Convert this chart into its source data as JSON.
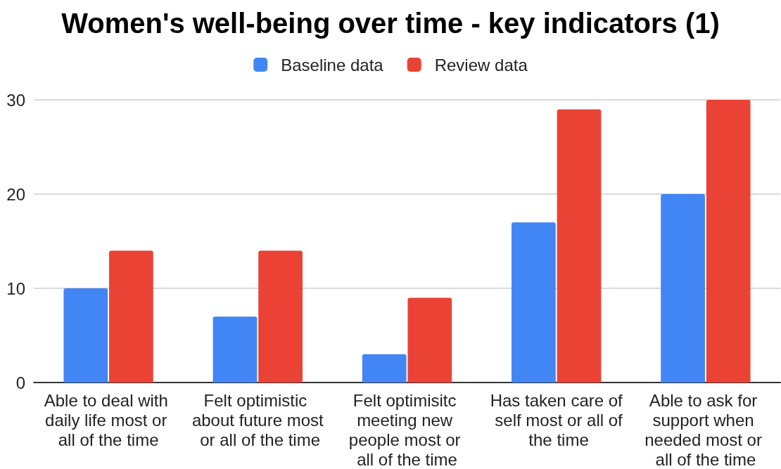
{
  "chart_data": {
    "type": "bar",
    "title": "Women's well-being over time - key indicators (1)",
    "categories": [
      "Able to deal with daily life most or all of the time",
      "Felt optimistic about future most or all of the time",
      "Felt optimisitc meeting new people most or all of the time",
      "Has taken care of self most or all of the time",
      "Able to ask for support when needed most or all of the time"
    ],
    "series": [
      {
        "name": "Baseline data",
        "color": "#4285f4",
        "values": [
          10,
          7,
          3,
          17,
          20
        ]
      },
      {
        "name": "Review data",
        "color": "#ea4335",
        "values": [
          14,
          14,
          9,
          29,
          30
        ]
      }
    ],
    "ylim": [
      0,
      30
    ],
    "yticks": [
      0,
      10,
      20,
      30
    ],
    "grid": "y",
    "legend": "top"
  }
}
